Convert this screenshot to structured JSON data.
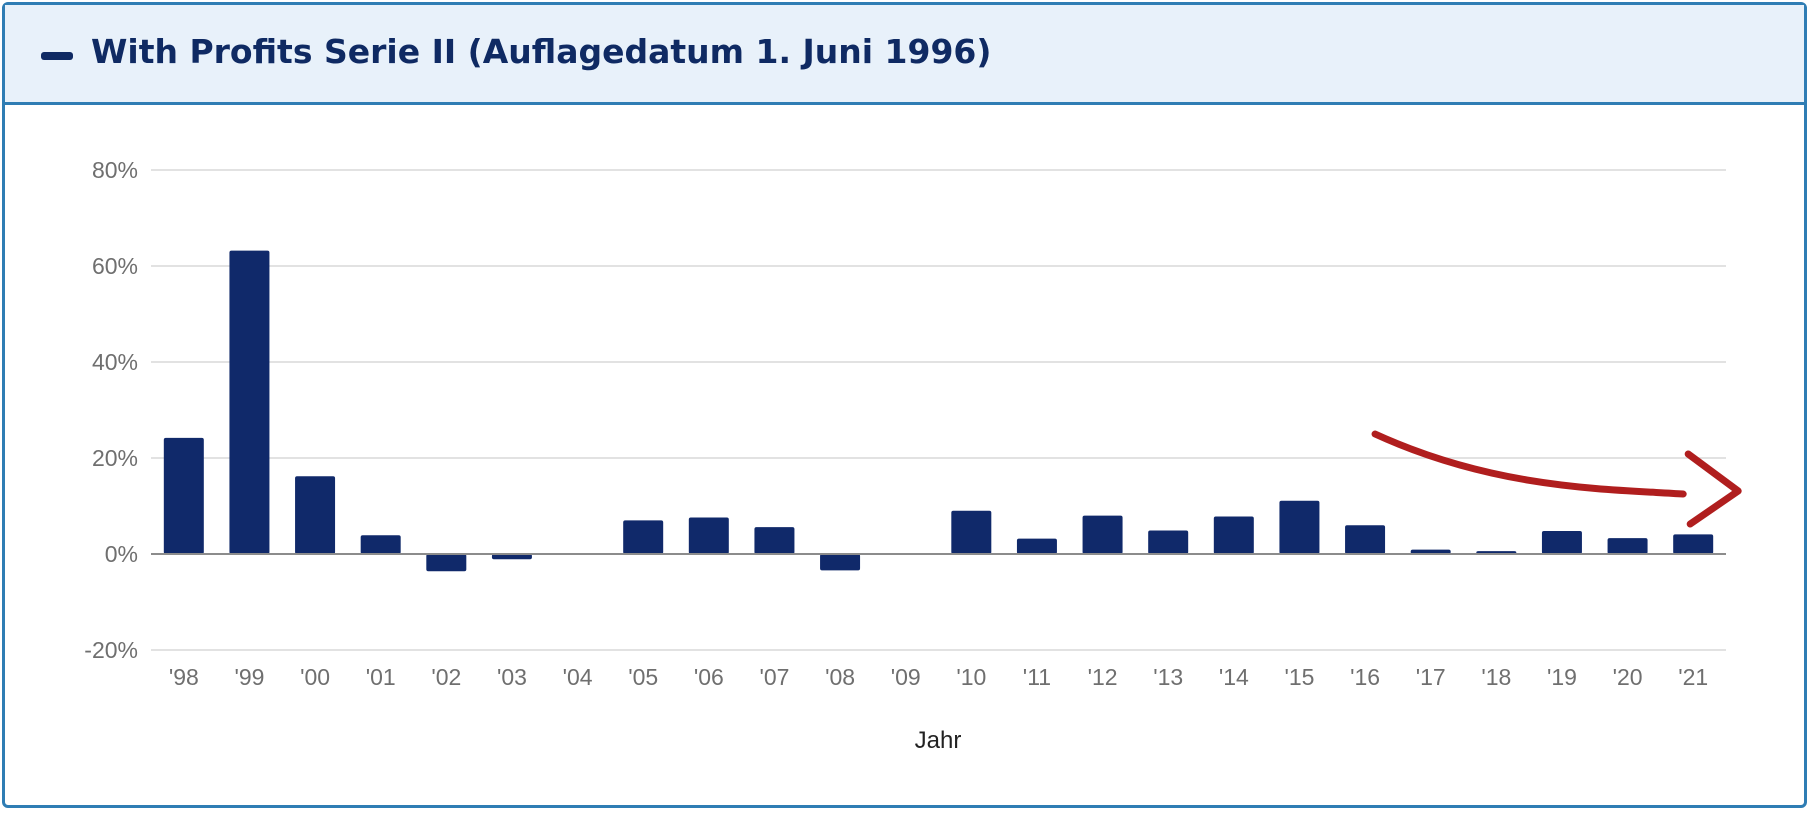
{
  "panel": {
    "title": "With Profits Serie II (Auflagedatum 1. Juni 1996)",
    "collapse_icon": "minus-icon"
  },
  "colors": {
    "bar": "#10296a",
    "grid": "#d9d9d9",
    "zero_line": "#8c8c8c",
    "border": "#2f7db4",
    "header_bg": "#e8f1fa",
    "annotation": "#b01e1e"
  },
  "chart_data": {
    "type": "bar",
    "xlabel": "Jahr",
    "ylabel": "",
    "categories": [
      "'98",
      "'99",
      "'00",
      "'01",
      "'02",
      "'03",
      "'04",
      "'05",
      "'06",
      "'07",
      "'08",
      "'09",
      "'10",
      "'11",
      "'12",
      "'13",
      "'14",
      "'15",
      "'16",
      "'17",
      "'18",
      "'19",
      "'20",
      "'21"
    ],
    "values": [
      24.2,
      63.2,
      16.2,
      3.9,
      -3.6,
      -1.1,
      0.0,
      7.0,
      7.6,
      5.6,
      -3.4,
      -0.1,
      9.0,
      3.2,
      8.0,
      4.9,
      7.8,
      11.1,
      6.0,
      0.9,
      0.6,
      4.8,
      3.3,
      4.1
    ],
    "ylim": [
      -20,
      80
    ],
    "yticks": [
      -20,
      0,
      20,
      40,
      60,
      80
    ],
    "ytick_labels": [
      "-20%",
      "0%",
      "20%",
      "40%",
      "60%",
      "80%"
    ],
    "grid": true,
    "legend": "none",
    "annotations": [
      {
        "type": "hand-drawn-arrow",
        "direction": "right",
        "from_category": "'16",
        "to_category": "'21",
        "color": "#b01e1e"
      }
    ]
  }
}
